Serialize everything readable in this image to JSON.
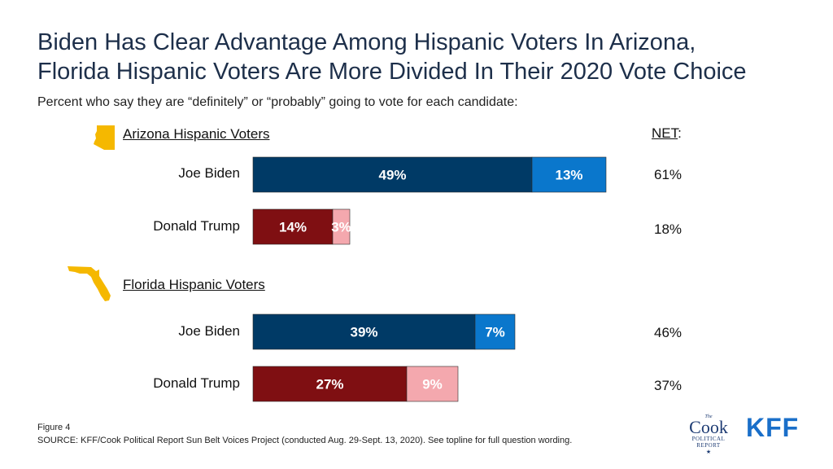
{
  "title_line1": "Biden Has Clear Advantage Among Hispanic Voters In Arizona,",
  "title_line2": "Florida Hispanic Voters Are More Divided In Their 2020 Vote Choice",
  "subtitle": "Percent who say they are “definitely” or “probably” going to vote for each candidate:",
  "net_header": "NET",
  "net_header_suffix": ":",
  "figure_label": "Figure 4",
  "source": "SOURCE: KFF/Cook Political Report Sun Belt Voices Project (conducted Aug. 29-Sept. 13, 2020). See topline for full question wording.",
  "logos": {
    "cook_the": "The",
    "cook_name": "Cook",
    "cook_political": "POLITICAL",
    "cook_report": "REPORT",
    "cook_star": "★",
    "kff": "KFF"
  },
  "colors": {
    "biden_definitely": "#003a66",
    "biden_probably": "#0a77cc",
    "trump_definitely": "#7f0f12",
    "trump_probably": "#f4a8ae",
    "state_icon": "#f5b800",
    "title": "#1d2f4a"
  },
  "chart_data": {
    "type": "bar",
    "orientation": "horizontal",
    "stacked": true,
    "segments": [
      "definitely",
      "probably"
    ],
    "groups": [
      {
        "label": "Arizona Hispanic Voters",
        "icon": "arizona-state-icon",
        "rows": [
          {
            "candidate": "Joe Biden",
            "values": [
              49,
              13
            ],
            "labels": [
              "49%",
              "13%"
            ],
            "net": "61%"
          },
          {
            "candidate": "Donald Trump",
            "values": [
              14,
              3
            ],
            "labels": [
              "14%",
              "3%"
            ],
            "net": "18%"
          }
        ]
      },
      {
        "label": "Florida Hispanic Voters",
        "icon": "florida-state-icon",
        "rows": [
          {
            "candidate": "Joe Biden",
            "values": [
              39,
              7
            ],
            "labels": [
              "39%",
              "7%"
            ],
            "net": "46%"
          },
          {
            "candidate": "Donald Trump",
            "values": [
              27,
              9
            ],
            "labels": [
              "27%",
              "9%"
            ],
            "net": "37%"
          }
        ]
      }
    ]
  }
}
